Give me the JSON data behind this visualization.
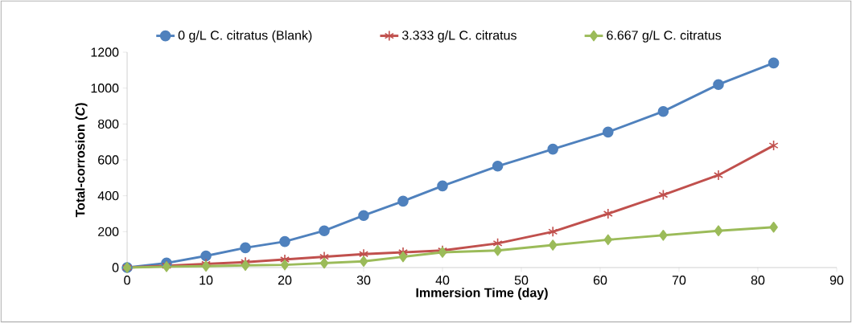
{
  "chart_data": {
    "type": "line",
    "xlabel": "Immersion Time (day)",
    "ylabel": "Total-corrosion (*C*)",
    "x": [
      0,
      5,
      10,
      15,
      20,
      25,
      30,
      35,
      40,
      47,
      54,
      61,
      68,
      75,
      82
    ],
    "series": [
      {
        "name": "0 g/L C. citratus (Blank)",
        "color": "#4f81bd",
        "marker": "circle",
        "values": [
          0,
          25,
          65,
          110,
          145,
          205,
          290,
          370,
          455,
          565,
          660,
          755,
          870,
          1020,
          1140
        ]
      },
      {
        "name": "3.333 g/L C. citratus",
        "color": "#c0504d",
        "marker": "cross",
        "values": [
          0,
          10,
          20,
          30,
          45,
          60,
          75,
          85,
          95,
          135,
          200,
          300,
          405,
          515,
          680
        ]
      },
      {
        "name": "6.667 g/L C. citratus",
        "color": "#9bbb59",
        "marker": "diamond",
        "values": [
          0,
          5,
          8,
          12,
          15,
          25,
          35,
          60,
          85,
          95,
          125,
          155,
          180,
          205,
          225
        ]
      }
    ],
    "xlim": [
      0,
      90
    ],
    "xticks": [
      0,
      10,
      20,
      30,
      40,
      50,
      60,
      70,
      80,
      90
    ],
    "ylim": [
      0,
      1200
    ],
    "yticks": [
      0,
      200,
      400,
      600,
      800,
      1000,
      1200
    ],
    "grid": false,
    "legend": "top",
    "line_style": "solid"
  }
}
